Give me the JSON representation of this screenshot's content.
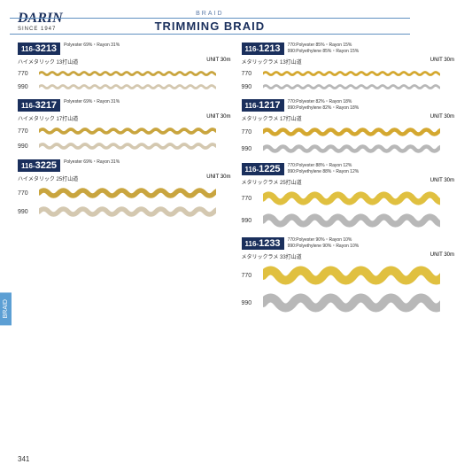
{
  "header": {
    "logo": "DARIN",
    "logo_sub": "SINCE 1947",
    "braid_label": "BRAID",
    "title": "TRIMMING BRAID"
  },
  "side_tab": "BRAID",
  "page_number": "341",
  "left_products": [
    {
      "code_prefix": "116-",
      "code_num": "3213",
      "spec1": "Polyester 69%・Rayon 31%",
      "desc": "ハイメタリック 13打山道",
      "unit": "UNIT 30m",
      "samples": [
        {
          "code": "770",
          "color": "#c9a53f",
          "amplitude": 3,
          "period": 12
        },
        {
          "code": "990",
          "color": "#d4c8b0",
          "amplitude": 3,
          "period": 12
        }
      ]
    },
    {
      "code_prefix": "116-",
      "code_num": "3217",
      "spec1": "Polyester 69%・Rayon 31%",
      "desc": "ハイメタリック 17打山道",
      "unit": "UNIT 30m",
      "samples": [
        {
          "code": "770",
          "color": "#c9a53f",
          "amplitude": 4,
          "period": 16
        },
        {
          "code": "990",
          "color": "#d4c8b0",
          "amplitude": 4,
          "period": 16
        }
      ]
    },
    {
      "code_prefix": "116-",
      "code_num": "3225",
      "spec1": "Polyester 69%・Rayon 31%",
      "desc": "ハイメタリック 25打山道",
      "unit": "UNIT 30m",
      "samples": [
        {
          "code": "770",
          "color": "#c9a53f",
          "amplitude": 6,
          "period": 22
        },
        {
          "code": "990",
          "color": "#d4c8b0",
          "amplitude": 6,
          "period": 22
        }
      ]
    }
  ],
  "right_products": [
    {
      "code_prefix": "116-",
      "code_num": "1213",
      "spec1": "770:Polyester 85%・Rayon 15%",
      "spec2": "990:Polyethylene 85%・Rayon 15%",
      "desc": "メタリックラメ 13打山道",
      "unit": "UNIT 30m",
      "samples": [
        {
          "code": "770",
          "color": "#d4a830",
          "amplitude": 3,
          "period": 12
        },
        {
          "code": "990",
          "color": "#b8b8b8",
          "amplitude": 3,
          "period": 12
        }
      ]
    },
    {
      "code_prefix": "116-",
      "code_num": "1217",
      "spec1": "770:Polyester 82%・Rayon 18%",
      "spec2": "990:Polyethylene 82%・Rayon 18%",
      "desc": "メタリックラメ 17打山道",
      "unit": "UNIT 30m",
      "samples": [
        {
          "code": "770",
          "color": "#d4a830",
          "amplitude": 5,
          "period": 18
        },
        {
          "code": "990",
          "color": "#b8b8b8",
          "amplitude": 5,
          "period": 18
        }
      ]
    },
    {
      "code_prefix": "116-",
      "code_num": "1225",
      "spec1": "770:Polyester 88%・Rayon 12%",
      "spec2": "990:Polyethylene 88%・Rayon 12%",
      "desc": "メタリックラメ 25打山道",
      "unit": "UNIT 30m",
      "samples": [
        {
          "code": "770",
          "color": "#e0c040",
          "amplitude": 8,
          "period": 26
        },
        {
          "code": "990",
          "color": "#b8b8b8",
          "amplitude": 8,
          "period": 26
        }
      ]
    },
    {
      "code_prefix": "116-",
      "code_num": "1233",
      "spec1": "770:Polyester 90%・Rayon 10%",
      "spec2": "990:Polyethylene 90%・Rayon 10%",
      "desc": "メタリックラメ 33打山道",
      "unit": "UNIT 30m",
      "samples": [
        {
          "code": "770",
          "color": "#e0c040",
          "amplitude": 11,
          "period": 34
        },
        {
          "code": "990",
          "color": "#b8b8b8",
          "amplitude": 11,
          "period": 34
        }
      ]
    }
  ]
}
